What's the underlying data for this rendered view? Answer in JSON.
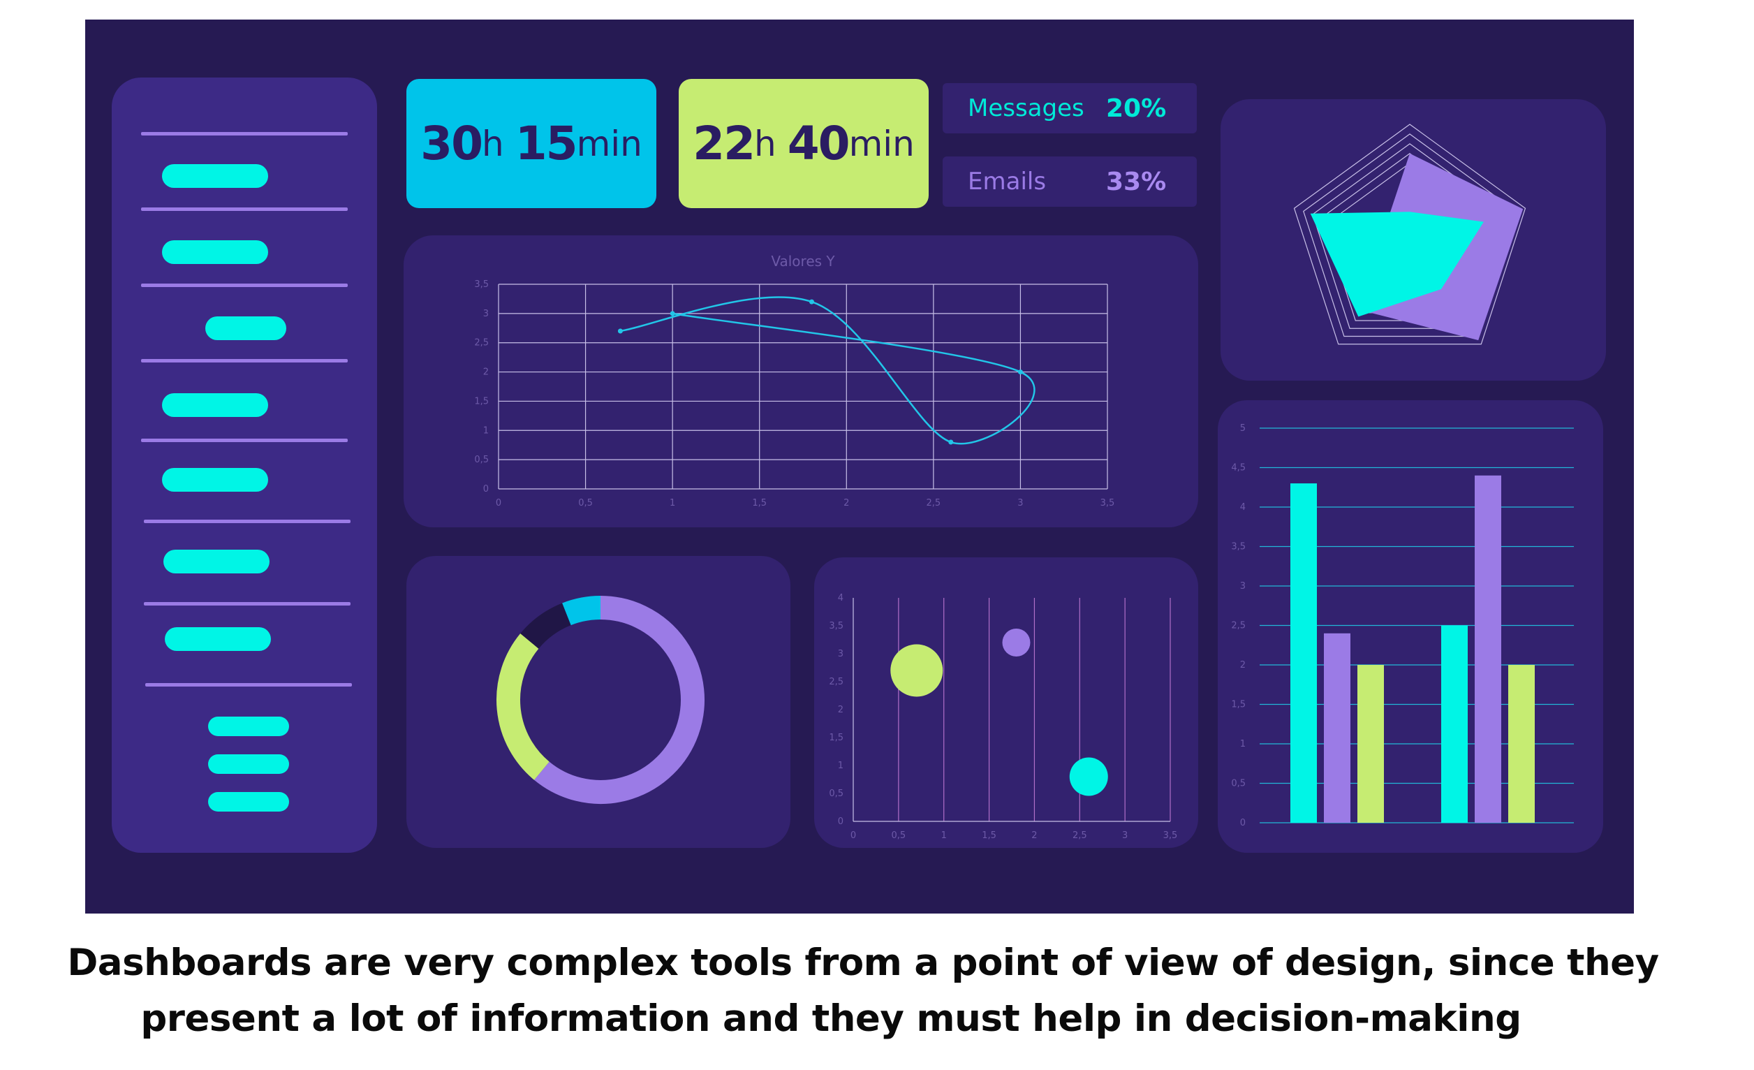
{
  "colors": {
    "background": "#261a53",
    "panel": "#33226f",
    "sidebar": "#3d2a86",
    "cyan": "#00f5e6",
    "purple": "#9b7be6",
    "lime": "#c6ec72",
    "blue": "#00c4ea"
  },
  "stats": [
    {
      "hours": "30",
      "hours_unit": "h",
      "minutes": "15",
      "minutes_unit": "min"
    },
    {
      "hours": "22",
      "hours_unit": "h",
      "minutes": "40",
      "minutes_unit": "min"
    }
  ],
  "kpis": {
    "messages": {
      "label": "Messages",
      "value": "20%"
    },
    "emails": {
      "label": "Emails",
      "value": "33%"
    }
  },
  "sidebar": {
    "item_count": 10
  },
  "caption": {
    "line1": "Dashboards are very complex tools from a point of view of design, since they",
    "line2": "present a lot of information and they must help in decision-making"
  },
  "chart_data": [
    {
      "type": "line",
      "title": "Valores Y",
      "xlabel": "",
      "ylabel": "",
      "xlim": [
        0,
        3.5
      ],
      "ylim": [
        0,
        3.5
      ],
      "x_ticks": [
        "0",
        "0,5",
        "1",
        "1,5",
        "2",
        "2,5",
        "3",
        "3,5"
      ],
      "y_ticks": [
        "0",
        "0,5",
        "1",
        "1,5",
        "2",
        "2,5",
        "3",
        "3,5"
      ],
      "grid": true,
      "series": [
        {
          "x": [
            0.7,
            1.8,
            2.6,
            3,
            1
          ],
          "y": [
            2.7,
            3.2,
            0.8,
            2,
            3
          ]
        }
      ]
    },
    {
      "type": "pie",
      "slices": [
        {
          "value": 61,
          "color": "#9b7be6"
        },
        {
          "value": 25,
          "color": "#c6ec72"
        },
        {
          "value": 8,
          "color": "#201646"
        },
        {
          "value": 6,
          "color": "#00c4ea"
        }
      ]
    },
    {
      "type": "scatter",
      "xlim": [
        0,
        3.5
      ],
      "ylim": [
        0,
        4
      ],
      "x_ticks": [
        "0",
        "0,5",
        "1",
        "1,5",
        "2",
        "2,5",
        "3",
        "3,5"
      ],
      "y_ticks": [
        "0",
        "0,5",
        "1",
        "1,5",
        "2",
        "2,5",
        "3",
        "3,5",
        "4"
      ],
      "points": [
        {
          "x": 0.7,
          "y": 2.7,
          "size": 3,
          "color": "#c6ec72"
        },
        {
          "x": 1.8,
          "y": 3.2,
          "size": 1.6,
          "color": "#9b7be6"
        },
        {
          "x": 2.6,
          "y": 0.8,
          "size": 2.2,
          "color": "#00f5e6"
        }
      ]
    },
    {
      "type": "radar",
      "axes": 5,
      "max": 5,
      "series": [
        {
          "values": [
            3.8,
            4.9,
            4.8,
            3.3,
            1.2
          ],
          "color": "#9b7be6"
        },
        {
          "values": [
            1.4,
            3.2,
            2.2,
            3.6,
            4.3
          ],
          "color": "#00f5e6"
        }
      ]
    },
    {
      "type": "bar",
      "ylim": [
        0,
        5
      ],
      "y_ticks": [
        "0",
        "0,5",
        "1",
        "1,5",
        "2",
        "2,5",
        "3",
        "3,5",
        "4",
        "4,5",
        "5"
      ],
      "categories": [
        "",
        ""
      ],
      "series": [
        {
          "values": [
            4.3,
            2.5
          ],
          "color": "#00f5e6"
        },
        {
          "values": [
            2.4,
            4.4
          ],
          "color": "#9b7be6"
        },
        {
          "values": [
            2,
            2
          ],
          "color": "#c6ec72"
        }
      ]
    }
  ]
}
